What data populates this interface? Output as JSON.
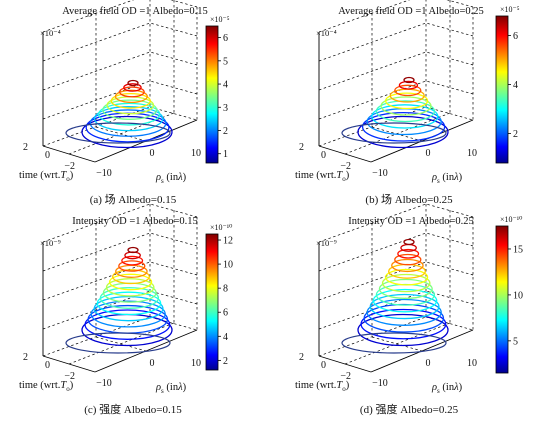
{
  "chart_data": [
    {
      "type": "contour3d",
      "title": "Average field OD =1  Albedo=0.15",
      "caption": "(a) 场 Albedo=0.15",
      "z_exponent": "×10⁻⁴",
      "colorbar_exponent": "×10⁻⁵",
      "colorbar_ticks": [
        "6",
        "5",
        "4",
        "3",
        "2",
        "1"
      ],
      "colorbar_range": [
        0.6,
        6.5
      ],
      "x_ticks": [
        "-10",
        "0",
        "10"
      ],
      "y_ticks": [
        "-2",
        "0",
        "2"
      ],
      "x_label": "ρs (inλ)",
      "y_label": "time (wrt.To)",
      "peak_level": 6.4
    },
    {
      "type": "contour3d",
      "title": "Average field OD =1  Albedo=0.25",
      "caption": "(b) 场 Albedo=0.25",
      "z_exponent": "×10⁻⁴",
      "colorbar_exponent": "×10⁻⁵",
      "colorbar_ticks": [
        "6",
        "4",
        "2"
      ],
      "colorbar_range": [
        0.8,
        6.8
      ],
      "x_ticks": [
        "-10",
        "0",
        "10"
      ],
      "y_ticks": [
        "-2",
        "0",
        "2"
      ],
      "x_label": "ρs (inλ)",
      "y_label": "time (wrt.To)",
      "peak_level": 6.6
    },
    {
      "type": "contour3d",
      "title": "Intensity OD =1  Albedo=0.15",
      "caption": "(c) 强度 Albedo=0.15",
      "z_exponent": "×10⁻⁹",
      "colorbar_exponent": "×10⁻¹⁰",
      "colorbar_ticks": [
        "12",
        "10",
        "8",
        "6",
        "4",
        "2"
      ],
      "colorbar_range": [
        1.2,
        12.5
      ],
      "x_ticks": [
        "-10",
        "0",
        "10"
      ],
      "y_ticks": [
        "-2",
        "0",
        "2"
      ],
      "x_label": "ρs (inλ)",
      "y_label": "time (wrt.To)",
      "peak_level": 12.2
    },
    {
      "type": "contour3d",
      "title": "Intensity OD =1  Albedo=0.25",
      "caption": "(d) 强度 Albedo=0.25",
      "z_exponent": "×10⁻⁹",
      "colorbar_exponent": "×10⁻¹⁰",
      "colorbar_ticks": [
        "15",
        "10",
        "5"
      ],
      "colorbar_range": [
        1.5,
        17.5
      ],
      "x_ticks": [
        "-10",
        "0",
        "10"
      ],
      "y_ticks": [
        "-2",
        "0",
        "2"
      ],
      "x_label": "ρs (inλ)",
      "y_label": "time (wrt.To)",
      "peak_level": 17
    }
  ]
}
